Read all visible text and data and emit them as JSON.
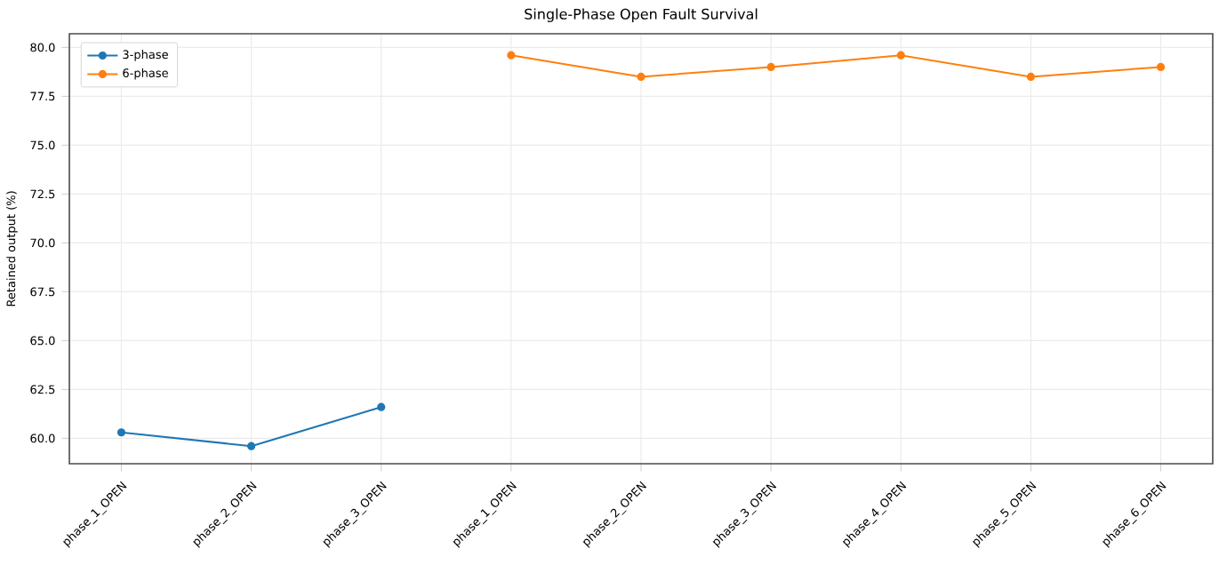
{
  "chart_data": {
    "type": "line",
    "title": "Single-Phase Open Fault Survival",
    "ylabel": "Retained output (%)",
    "categories": [
      "phase_1_OPEN",
      "phase_2_OPEN",
      "phase_3_OPEN",
      "phase_1_OPEN",
      "phase_2_OPEN",
      "phase_3_OPEN",
      "phase_4_OPEN",
      "phase_5_OPEN",
      "phase_6_OPEN"
    ],
    "series": [
      {
        "name": "3-phase",
        "color": "#1f77b4",
        "values": [
          60.3,
          59.6,
          61.6,
          null,
          null,
          null,
          null,
          null,
          null
        ]
      },
      {
        "name": "6-phase",
        "color": "#ff7f0e",
        "values": [
          null,
          null,
          null,
          79.6,
          78.5,
          79.0,
          79.6,
          78.5,
          79.0
        ]
      }
    ],
    "ylim": [
      58.7,
      80.7
    ],
    "yticks": [
      {
        "value": 60,
        "label": "60.0"
      },
      62.5,
      {
        "value": 65,
        "label": "65.0"
      },
      67.5,
      {
        "value": 70,
        "label": "70.0"
      },
      72.5,
      {
        "value": 75,
        "label": "75.0"
      },
      77.5,
      {
        "value": 80,
        "label": "80.0"
      }
    ],
    "grid": true,
    "legend": "top left",
    "marker": "circle",
    "line_style": "solid"
  }
}
